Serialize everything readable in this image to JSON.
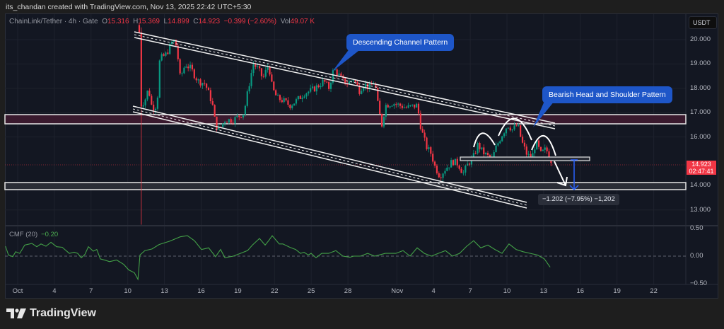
{
  "credit": "its_chandan created with TradingView.com, Nov 13, 2025 22:42 UTC+5:30",
  "legend": {
    "symbol": "ChainLink/Tether · 4h · Gate",
    "o_label": "O",
    "o": "15.316",
    "h_label": "H",
    "h": "15.369",
    "l_label": "L",
    "l": "14.899",
    "c_label": "C",
    "c": "14.923",
    "change": "−0.399 (−2.60%)",
    "vol_label": "Vol",
    "vol": "49.07 K"
  },
  "currency": "USDT",
  "last_price": {
    "price": "14.923",
    "countdown": "02:47:41"
  },
  "cmf": {
    "label": "CMF (20)",
    "value": "−0.20"
  },
  "annotations": {
    "channel": "Descending Channel Pattern",
    "hs": "Bearish Head and Shoulder Pattern",
    "measure": "−1.202 (−7.95%) −1,202"
  },
  "brand": "TradingView",
  "colors": {
    "up": "#089981",
    "down": "#f23645",
    "cmf": "#43a047",
    "callout": "#1e56c8"
  },
  "chart_data": [
    {
      "type": "candlestick",
      "title": "ChainLink/Tether · 4h · Gate",
      "xlabel": "",
      "ylabel": "USDT",
      "x_ticks": [
        {
          "day": 1,
          "label": "Oct"
        },
        {
          "day": 4,
          "label": "4"
        },
        {
          "day": 7,
          "label": "7"
        },
        {
          "day": 10,
          "label": "10"
        },
        {
          "day": 13,
          "label": "13"
        },
        {
          "day": 16,
          "label": "16"
        },
        {
          "day": 19,
          "label": "19"
        },
        {
          "day": 22,
          "label": "22"
        },
        {
          "day": 25,
          "label": "25"
        },
        {
          "day": 28,
          "label": "28"
        },
        {
          "day": 32,
          "label": "Nov"
        },
        {
          "day": 35,
          "label": "4"
        },
        {
          "day": 38,
          "label": "7"
        },
        {
          "day": 41,
          "label": "10"
        },
        {
          "day": 44,
          "label": "13"
        },
        {
          "day": 47,
          "label": "16"
        },
        {
          "day": 50,
          "label": "19"
        },
        {
          "day": 53,
          "label": "22"
        }
      ],
      "y_ticks": [
        "20.000",
        "19.000",
        "18.000",
        "17.000",
        "16.000",
        "14.000",
        "13.000"
      ],
      "y_tick_values": [
        20,
        19,
        18,
        17,
        16,
        14,
        13
      ],
      "ylim": [
        12.3,
        20.8
      ],
      "close_path": [
        [
          10.94,
          20.3
        ],
        [
          11.06,
          17.3
        ],
        [
          11.4,
          17.5
        ],
        [
          11.69,
          18.0
        ],
        [
          11.98,
          17.2
        ],
        [
          12.39,
          17.3
        ],
        [
          12.62,
          19.2
        ],
        [
          13.14,
          19.4
        ],
        [
          13.72,
          20.0
        ],
        [
          14.0,
          19.7
        ],
        [
          14.29,
          18.4
        ],
        [
          14.7,
          19.0
        ],
        [
          15.16,
          18.8
        ],
        [
          15.74,
          18.3
        ],
        [
          16.32,
          18.2
        ],
        [
          16.61,
          17.8
        ],
        [
          16.9,
          17.4
        ],
        [
          17.18,
          16.5
        ],
        [
          17.47,
          16.3
        ],
        [
          17.94,
          16.7
        ],
        [
          18.63,
          16.7
        ],
        [
          19.5,
          17.0
        ],
        [
          19.9,
          18.1
        ],
        [
          20.25,
          19.0
        ],
        [
          20.65,
          18.8
        ],
        [
          21.06,
          18.4
        ],
        [
          21.52,
          19.0
        ],
        [
          21.81,
          18.0
        ],
        [
          22.21,
          17.6
        ],
        [
          22.68,
          17.5
        ],
        [
          23.25,
          17.3
        ],
        [
          23.83,
          17.5
        ],
        [
          24.41,
          17.8
        ],
        [
          24.99,
          17.9
        ],
        [
          25.57,
          18.1
        ],
        [
          26.03,
          18.3
        ],
        [
          26.43,
          18.0
        ],
        [
          26.84,
          18.8
        ],
        [
          27.18,
          18.6
        ],
        [
          27.59,
          18.3
        ],
        [
          27.99,
          18.2
        ],
        [
          28.46,
          18.4
        ],
        [
          28.92,
          17.9
        ],
        [
          29.32,
          18.2
        ],
        [
          29.73,
          18.0
        ],
        [
          30.19,
          18.3
        ],
        [
          30.48,
          17.2
        ],
        [
          30.77,
          16.5
        ],
        [
          31.06,
          17.3
        ],
        [
          31.64,
          17.4
        ],
        [
          32.21,
          17.3
        ],
        [
          32.79,
          17.2
        ],
        [
          33.66,
          17.3
        ],
        [
          34.0,
          16.3
        ],
        [
          34.41,
          15.6
        ],
        [
          34.82,
          15.3
        ],
        [
          35.1,
          14.8
        ],
        [
          35.51,
          14.4
        ],
        [
          35.97,
          14.7
        ],
        [
          36.55,
          15.0
        ],
        [
          37.01,
          14.9
        ],
        [
          37.42,
          14.5
        ],
        [
          37.82,
          14.9
        ],
        [
          38.28,
          15.2
        ],
        [
          38.63,
          15.7
        ],
        [
          38.98,
          15.4
        ],
        [
          39.44,
          15.2
        ],
        [
          39.79,
          15.1
        ],
        [
          40.13,
          15.6
        ],
        [
          40.6,
          16.1
        ],
        [
          41.06,
          16.5
        ],
        [
          41.46,
          16.3
        ],
        [
          41.87,
          16.5
        ],
        [
          42.21,
          15.8
        ],
        [
          42.62,
          15.3
        ],
        [
          43.02,
          15.1
        ],
        [
          43.37,
          15.8
        ],
        [
          43.77,
          15.3
        ],
        [
          44.18,
          15.5
        ],
        [
          44.53,
          15.2
        ],
        [
          44.76,
          14.923
        ]
      ]
    },
    {
      "type": "line",
      "title": "CMF (20)",
      "y_ticks": [
        "0.50",
        "0.00",
        "−0.50"
      ],
      "y_tick_values": [
        0.5,
        0,
        -0.5
      ],
      "ylim": [
        -0.5,
        0.5
      ],
      "points": [
        [
          0,
          0.18
        ],
        [
          0.25,
          0.02
        ],
        [
          0.6,
          -0.01
        ],
        [
          0.83,
          0.08
        ],
        [
          1.17,
          0.05
        ],
        [
          1.58,
          0.2
        ],
        [
          2.16,
          0.23
        ],
        [
          2.56,
          0.17
        ],
        [
          2.91,
          0.22
        ],
        [
          3.31,
          0.18
        ],
        [
          3.72,
          0.25
        ],
        [
          4.18,
          0.17
        ],
        [
          4.64,
          0.16
        ],
        [
          5.22,
          0.05
        ],
        [
          5.62,
          0.07
        ],
        [
          5.91,
          0.05
        ],
        [
          6.2,
          -0.03
        ],
        [
          6.49,
          0.03
        ],
        [
          6.78,
          0.17
        ],
        [
          7.18,
          0.09
        ],
        [
          7.47,
          0.12
        ],
        [
          7.76,
          -0.05
        ],
        [
          8.23,
          -0.08
        ],
        [
          8.51,
          -0.1
        ],
        [
          9.09,
          -0.07
        ],
        [
          9.67,
          -0.15
        ],
        [
          10.08,
          -0.25
        ],
        [
          10.54,
          -0.3
        ],
        [
          10.83,
          -0.42
        ],
        [
          11.0,
          0.02
        ],
        [
          11.4,
          0.1
        ],
        [
          11.98,
          0.13
        ],
        [
          12.56,
          0.21
        ],
        [
          13.43,
          0.27
        ],
        [
          14.29,
          0.35
        ],
        [
          14.87,
          0.37
        ],
        [
          15.45,
          0.28
        ],
        [
          16.03,
          0.12
        ],
        [
          16.61,
          0.15
        ],
        [
          17.18,
          -0.01
        ],
        [
          17.59,
          0.12
        ],
        [
          17.94,
          -0.03
        ],
        [
          18.63,
          0.0
        ],
        [
          19.21,
          0.05
        ],
        [
          19.79,
          0.1
        ],
        [
          20.19,
          0.2
        ],
        [
          20.77,
          0.32
        ],
        [
          21.23,
          0.2
        ],
        [
          21.52,
          0.28
        ],
        [
          21.81,
          0.37
        ],
        [
          22.39,
          0.22
        ],
        [
          22.68,
          0.22
        ],
        [
          23.25,
          0.16
        ],
        [
          23.72,
          0.12
        ],
        [
          24.12,
          0.05
        ],
        [
          24.41,
          0.07
        ],
        [
          24.76,
          0.02
        ],
        [
          24.99,
          0.05
        ],
        [
          25.39,
          -0.03
        ],
        [
          25.86,
          0.05
        ],
        [
          26.43,
          0.05
        ],
        [
          27.01,
          0.1
        ],
        [
          27.59,
          0.0
        ],
        [
          28.17,
          -0.02
        ],
        [
          28.46,
          0.0
        ],
        [
          29.03,
          0.0
        ],
        [
          29.61,
          0.05
        ],
        [
          30.19,
          0.0
        ],
        [
          31.06,
          0.05
        ],
        [
          31.92,
          0.05
        ],
        [
          32.5,
          0.1
        ],
        [
          33.08,
          0.0
        ],
        [
          33.66,
          0.15
        ],
        [
          34.24,
          0.05
        ],
        [
          34.82,
          0.0
        ],
        [
          35.39,
          0.05
        ],
        [
          35.97,
          0.1
        ],
        [
          36.55,
          0.0
        ],
        [
          37.13,
          0.05
        ],
        [
          37.71,
          0.18
        ],
        [
          38.28,
          0.28
        ],
        [
          38.86,
          0.15
        ],
        [
          39.44,
          0.2
        ],
        [
          40.02,
          0.12
        ],
        [
          40.6,
          0.05
        ],
        [
          41.17,
          0.22
        ],
        [
          41.75,
          0.12
        ],
        [
          42.33,
          0.08
        ],
        [
          42.91,
          0.05
        ],
        [
          43.49,
          0.02
        ],
        [
          44.06,
          -0.05
        ],
        [
          44.53,
          -0.2
        ]
      ]
    }
  ]
}
